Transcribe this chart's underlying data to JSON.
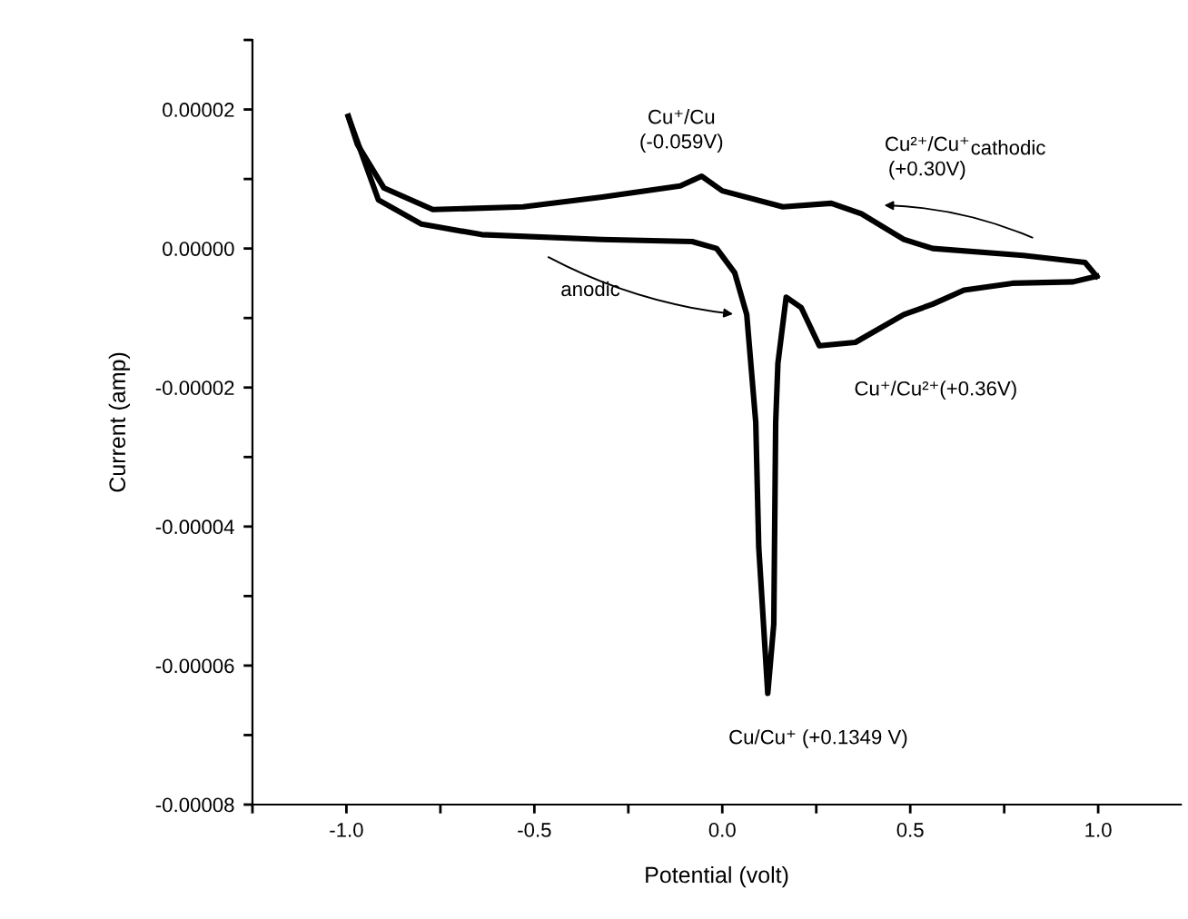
{
  "chart_data": {
    "type": "line",
    "xlabel": "Potential (volt)",
    "ylabel": "Current (amp)",
    "series": [
      {
        "color": "#000000",
        "x": [
          -0.995,
          -0.915,
          -0.8,
          -0.64,
          -0.32,
          -0.08,
          -0.015,
          0.033,
          0.065,
          0.089,
          0.097,
          0.121,
          0.137,
          0.142,
          0.148,
          0.17,
          0.21,
          0.258,
          0.354,
          0.483,
          0.56,
          0.643,
          0.772,
          0.933,
          0.996
        ],
        "values": [
          1.9e-05,
          7e-06,
          3.5e-06,
          2e-06,
          1.3e-06,
          1e-06,
          0.0,
          -3.5e-06,
          -9.5e-06,
          -2.5e-05,
          -4.3e-05,
          -6.4e-05,
          -5.4e-05,
          -2.5e-05,
          -1.65e-05,
          -7e-06,
          -8.5e-06,
          -1.4e-05,
          -1.35e-05,
          -9.5e-06,
          -8e-06,
          -6e-06,
          -5e-06,
          -4.8e-06,
          -4e-06
        ]
      },
      {
        "color": "#000000",
        "x": [
          0.996,
          0.965,
          0.8,
          0.56,
          0.483,
          0.37,
          0.29,
          0.161,
          0.0,
          -0.055,
          -0.112,
          -0.32,
          -0.53,
          -0.77,
          -0.9,
          -0.971,
          -0.995
        ],
        "values": [
          -4e-06,
          -2e-06,
          -1e-06,
          0.0,
          1.3e-06,
          5e-06,
          6.5e-06,
          6e-06,
          8.3e-06,
          1.04e-05,
          9e-06,
          7.4e-06,
          6e-06,
          5.6e-06,
          8.7e-06,
          1.5e-05,
          1.9e-05
        ]
      }
    ],
    "xlim": [
      -1.25,
      1.22
    ],
    "ylim": [
      -8e-05,
      3e-05
    ],
    "xticks": [
      {
        "value": -1.25,
        "label": null
      },
      {
        "value": -1.0,
        "label": "-1.0"
      },
      {
        "value": -0.75,
        "label": null
      },
      {
        "value": -0.5,
        "label": "-0.5"
      },
      {
        "value": -0.25,
        "label": null
      },
      {
        "value": 0.0,
        "label": "0.0"
      },
      {
        "value": 0.25,
        "label": null
      },
      {
        "value": 0.5,
        "label": "0.5"
      },
      {
        "value": 0.75,
        "label": null
      },
      {
        "value": 1.0,
        "label": "1.0"
      }
    ],
    "yticks": [
      {
        "value": -8e-05,
        "label": "-0.00008"
      },
      {
        "value": -7e-05,
        "label": null
      },
      {
        "value": -6e-05,
        "label": "-0.00006"
      },
      {
        "value": -5e-05,
        "label": null
      },
      {
        "value": -4e-05,
        "label": "-0.00004"
      },
      {
        "value": -3e-05,
        "label": null
      },
      {
        "value": -2e-05,
        "label": "-0.00002"
      },
      {
        "value": -1e-05,
        "label": null
      },
      {
        "value": 0.0,
        "label": "0.00000"
      },
      {
        "value": 1e-05,
        "label": null
      },
      {
        "value": 2e-05,
        "label": "0.00002"
      },
      {
        "value": 3e-05,
        "label": null
      }
    ],
    "grid": false,
    "legend": false,
    "marker": "none",
    "line_style": "solid",
    "annotations": [
      {
        "text": "Cu⁺/Cu\n(-0.059V)",
        "x": -0.055,
        "y": 1.04e-05
      },
      {
        "text": "Cu²⁺/Cu⁺\n(+0.30V)",
        "x": 0.29,
        "y": 6.5e-06
      },
      "cathodic",
      "anodic",
      "Cu⁺/Cu²⁺(+0.36V)",
      {
        "text": "Cu/Cu⁺ (+0.1349 V)",
        "x": 0.121,
        "y": -6.4e-05
      }
    ]
  }
}
